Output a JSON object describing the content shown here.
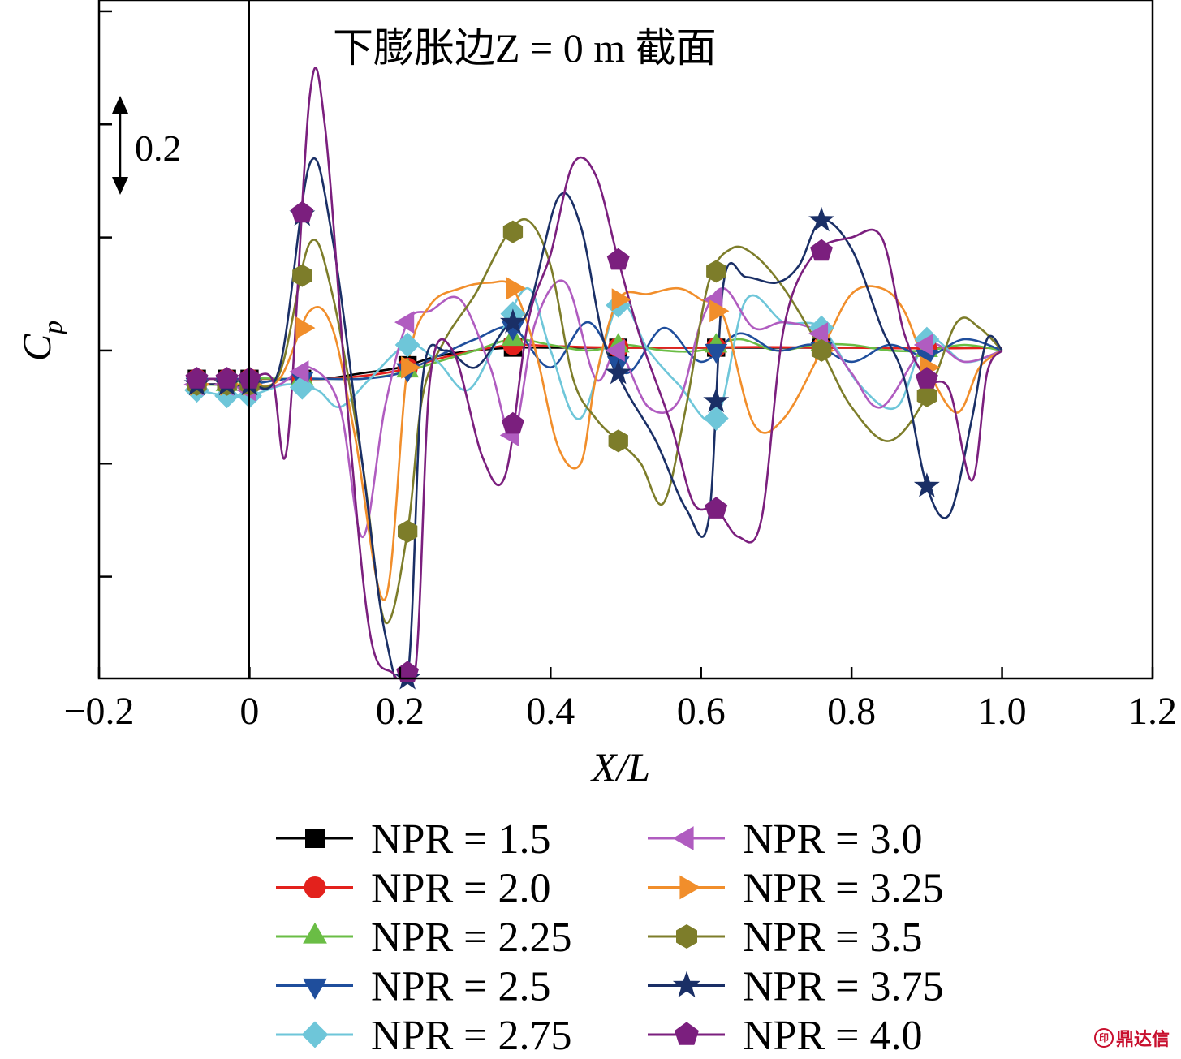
{
  "chart_data": {
    "type": "line",
    "title": "下膨胀边Z = 0 m 截面",
    "xlabel": "X/L",
    "ylabel": "C_p",
    "ylabel_main": "C",
    "ylabel_sub": "p",
    "xlim": [
      -0.2,
      1.2
    ],
    "xticks": [
      "−0.2",
      "0",
      "0.2",
      "0.4",
      "0.6",
      "0.8",
      "1.0",
      "1.2"
    ],
    "xtick_values": [
      -0.2,
      0,
      0.2,
      0.4,
      0.6,
      0.8,
      1.0,
      1.2
    ],
    "ylim": [
      -0.58,
      0.62
    ],
    "ytick_values": [
      -0.4,
      -0.2,
      0.0,
      0.2,
      0.4,
      0.6
    ],
    "y_tick_labels_shown": false,
    "scale_bar": {
      "label": "0.2",
      "value": 0.2,
      "from": 0.4,
      "to": 0.6
    },
    "legend_position": "bottom",
    "grid": false,
    "series": [
      {
        "name": "NPR = 1.5",
        "color": "#000000",
        "marker": "square",
        "x": [
          -0.07,
          -0.03,
          0.0,
          0.05,
          0.1,
          0.15,
          0.2,
          0.25,
          0.3,
          0.35,
          0.4,
          0.45,
          0.5,
          0.55,
          0.6,
          0.65,
          0.7,
          0.75,
          0.8,
          0.85,
          0.9,
          0.95,
          1.0
        ],
        "y": [
          -0.05,
          -0.05,
          -0.05,
          -0.05,
          -0.05,
          -0.04,
          -0.03,
          -0.01,
          0.0,
          0.005,
          0.005,
          0.005,
          0.005,
          0.005,
          0.005,
          0.005,
          0.005,
          0.005,
          0.005,
          0.005,
          0.005,
          0.005,
          0.005
        ],
        "marker_x": [
          -0.07,
          -0.03,
          0.0,
          0.07,
          0.21,
          0.35,
          0.49,
          0.62,
          0.76,
          0.9
        ]
      },
      {
        "name": "NPR = 2.0",
        "color": "#e3211c",
        "marker": "circle",
        "x": [
          -0.07,
          -0.03,
          0.0,
          0.05,
          0.1,
          0.15,
          0.2,
          0.25,
          0.3,
          0.35,
          0.4,
          0.45,
          0.5,
          0.55,
          0.6,
          0.65,
          0.7,
          0.75,
          0.8,
          0.85,
          0.9,
          0.95,
          1.0
        ],
        "y": [
          -0.05,
          -0.05,
          -0.05,
          -0.05,
          -0.05,
          -0.045,
          -0.035,
          -0.015,
          0.0,
          0.01,
          0.008,
          0.006,
          0.005,
          0.005,
          0.005,
          0.006,
          0.006,
          0.005,
          0.005,
          0.004,
          0.004,
          0.004,
          0.005
        ],
        "marker_x": [
          -0.07,
          -0.03,
          0.0,
          0.07,
          0.21,
          0.35,
          0.49,
          0.62,
          0.76,
          0.9
        ]
      },
      {
        "name": "NPR = 2.25",
        "color": "#6abd45",
        "marker": "triangle-up",
        "x": [
          -0.07,
          -0.03,
          0.0,
          0.05,
          0.1,
          0.15,
          0.2,
          0.25,
          0.3,
          0.35,
          0.4,
          0.45,
          0.5,
          0.55,
          0.6,
          0.65,
          0.7,
          0.75,
          0.8,
          0.85,
          0.9,
          0.95,
          1.0
        ],
        "y": [
          -0.06,
          -0.06,
          -0.05,
          -0.05,
          -0.05,
          -0.05,
          -0.04,
          -0.02,
          0.0,
          0.02,
          0.01,
          0.0,
          0.01,
          0.0,
          0.0,
          0.02,
          0.0,
          0.01,
          0.01,
          0.0,
          0.0,
          0.01,
          0.0
        ],
        "marker_x": [
          -0.07,
          -0.03,
          0.0,
          0.07,
          0.21,
          0.35,
          0.49,
          0.62,
          0.76,
          0.9
        ]
      },
      {
        "name": "NPR = 2.5",
        "color": "#1f4e9c",
        "marker": "triangle-down",
        "x": [
          -0.07,
          -0.03,
          0.0,
          0.05,
          0.1,
          0.15,
          0.2,
          0.25,
          0.3,
          0.35,
          0.4,
          0.45,
          0.5,
          0.55,
          0.6,
          0.65,
          0.7,
          0.75,
          0.8,
          0.85,
          0.9,
          0.95,
          1.0
        ],
        "y": [
          -0.06,
          -0.06,
          -0.06,
          -0.05,
          -0.05,
          -0.05,
          -0.04,
          -0.01,
          0.02,
          0.04,
          -0.03,
          0.05,
          -0.04,
          0.04,
          -0.02,
          0.03,
          0.0,
          0.01,
          -0.02,
          0.01,
          -0.01,
          0.02,
          0.0
        ],
        "marker_x": [
          -0.07,
          -0.03,
          0.0,
          0.07,
          0.21,
          0.35,
          0.49,
          0.62,
          0.76,
          0.9
        ]
      },
      {
        "name": "NPR = 2.75",
        "color": "#6ec6d9",
        "marker": "diamond",
        "x": [
          -0.07,
          -0.03,
          0.0,
          0.05,
          0.09,
          0.12,
          0.16,
          0.21,
          0.25,
          0.29,
          0.33,
          0.37,
          0.4,
          0.44,
          0.49,
          0.53,
          0.57,
          0.62,
          0.66,
          0.71,
          0.76,
          0.81,
          0.86,
          0.9,
          0.95,
          1.0
        ],
        "y": [
          -0.07,
          -0.08,
          -0.08,
          -0.06,
          -0.07,
          -0.1,
          -0.05,
          0.01,
          -0.02,
          -0.07,
          0.02,
          0.11,
          0.0,
          -0.12,
          0.08,
          0.0,
          -0.06,
          -0.12,
          0.09,
          0.05,
          0.04,
          -0.06,
          -0.1,
          0.02,
          -0.02,
          0.0
        ],
        "marker_x": [
          -0.07,
          -0.03,
          0.0,
          0.07,
          0.21,
          0.35,
          0.49,
          0.62,
          0.76,
          0.9
        ]
      },
      {
        "name": "NPR = 3.0",
        "color": "#b05cc0",
        "marker": "triangle-left",
        "x": [
          -0.07,
          -0.03,
          0.0,
          0.04,
          0.08,
          0.12,
          0.15,
          0.18,
          0.21,
          0.24,
          0.28,
          0.32,
          0.35,
          0.38,
          0.42,
          0.46,
          0.49,
          0.53,
          0.57,
          0.6,
          0.63,
          0.67,
          0.71,
          0.76,
          0.8,
          0.84,
          0.9,
          0.95,
          1.0
        ],
        "y": [
          -0.06,
          -0.06,
          -0.07,
          -0.06,
          -0.03,
          -0.1,
          -0.33,
          -0.1,
          0.05,
          0.07,
          0.09,
          -0.03,
          -0.15,
          0.05,
          0.12,
          -0.05,
          0.0,
          -0.1,
          -0.09,
          0.05,
          0.11,
          0.04,
          0.05,
          0.03,
          -0.04,
          -0.1,
          0.01,
          -0.02,
          0.0
        ],
        "marker_x": [
          -0.07,
          -0.03,
          0.0,
          0.07,
          0.21,
          0.35,
          0.49,
          0.62,
          0.76,
          0.9
        ]
      },
      {
        "name": "NPR = 3.25",
        "color": "#f18e2b",
        "marker": "triangle-right",
        "x": [
          -0.07,
          -0.03,
          0.0,
          0.04,
          0.08,
          0.11,
          0.14,
          0.18,
          0.21,
          0.24,
          0.28,
          0.32,
          0.35,
          0.38,
          0.41,
          0.44,
          0.46,
          0.49,
          0.53,
          0.57,
          0.6,
          0.63,
          0.67,
          0.71,
          0.76,
          0.8,
          0.84,
          0.87,
          0.9,
          0.94,
          0.97,
          1.0
        ],
        "y": [
          -0.06,
          -0.06,
          -0.06,
          -0.05,
          0.07,
          0.04,
          -0.15,
          -0.44,
          -0.03,
          0.08,
          0.11,
          0.12,
          0.11,
          0.0,
          -0.17,
          -0.2,
          -0.05,
          0.09,
          0.1,
          0.11,
          0.09,
          0.06,
          -0.13,
          -0.12,
          0.0,
          0.1,
          0.11,
          0.07,
          -0.03,
          -0.11,
          -0.03,
          0.0
        ],
        "marker_x": [
          -0.07,
          -0.03,
          0.0,
          0.07,
          0.21,
          0.35,
          0.49,
          0.62,
          0.76,
          0.9
        ]
      },
      {
        "name": "NPR = 3.5",
        "color": "#7d7d2a",
        "marker": "hexagon",
        "x": [
          -0.07,
          -0.03,
          0.0,
          0.04,
          0.08,
          0.11,
          0.15,
          0.18,
          0.21,
          0.23,
          0.26,
          0.3,
          0.34,
          0.37,
          0.4,
          0.43,
          0.46,
          0.49,
          0.52,
          0.55,
          0.58,
          0.61,
          0.64,
          0.67,
          0.71,
          0.76,
          0.8,
          0.85,
          0.9,
          0.94,
          0.97,
          1.0
        ],
        "y": [
          -0.06,
          -0.06,
          -0.06,
          -0.04,
          0.19,
          0.1,
          -0.2,
          -0.48,
          -0.32,
          -0.08,
          0.02,
          0.1,
          0.2,
          0.23,
          0.15,
          -0.05,
          -0.12,
          -0.16,
          -0.2,
          -0.27,
          -0.1,
          0.12,
          0.18,
          0.17,
          0.11,
          0.0,
          -0.1,
          -0.16,
          -0.08,
          0.05,
          0.04,
          0.0
        ],
        "marker_x": [
          -0.07,
          -0.03,
          0.0,
          0.07,
          0.21,
          0.35,
          0.49,
          0.62,
          0.76,
          0.9
        ]
      },
      {
        "name": "NPR = 3.75",
        "color": "#1a2f66",
        "marker": "star",
        "x": [
          -0.07,
          -0.03,
          0.0,
          0.04,
          0.08,
          0.11,
          0.15,
          0.18,
          0.21,
          0.23,
          0.26,
          0.3,
          0.34,
          0.37,
          0.41,
          0.44,
          0.47,
          0.5,
          0.54,
          0.58,
          0.61,
          0.63,
          0.66,
          0.7,
          0.73,
          0.76,
          0.8,
          0.84,
          0.87,
          0.9,
          0.93,
          0.96,
          0.98,
          1.0
        ],
        "y": [
          -0.06,
          -0.06,
          -0.06,
          -0.03,
          0.33,
          0.2,
          -0.2,
          -0.5,
          -0.58,
          -0.05,
          0.0,
          -0.03,
          0.04,
          0.07,
          0.27,
          0.22,
          0.02,
          -0.07,
          -0.16,
          -0.28,
          -0.3,
          0.12,
          0.13,
          0.12,
          0.15,
          0.23,
          0.18,
          0.04,
          -0.05,
          -0.24,
          -0.29,
          -0.12,
          0.02,
          0.0
        ],
        "marker_x": [
          -0.07,
          -0.03,
          0.0,
          0.07,
          0.21,
          0.35,
          0.49,
          0.62,
          0.76,
          0.9
        ]
      },
      {
        "name": "NPR = 4.0",
        "color": "#7b1f7e",
        "marker": "pentagon",
        "x": [
          -0.07,
          -0.03,
          0.0,
          0.03,
          0.05,
          0.08,
          0.1,
          0.13,
          0.16,
          0.19,
          0.22,
          0.24,
          0.27,
          0.31,
          0.34,
          0.37,
          0.4,
          0.43,
          0.46,
          0.49,
          0.52,
          0.56,
          0.59,
          0.62,
          0.65,
          0.68,
          0.71,
          0.75,
          0.8,
          0.84,
          0.87,
          0.9,
          0.93,
          0.96,
          0.98,
          1.0
        ],
        "y": [
          -0.05,
          -0.05,
          -0.05,
          -0.05,
          -0.17,
          0.45,
          0.4,
          -0.1,
          -0.5,
          -0.57,
          -0.57,
          -0.05,
          0.0,
          -0.19,
          -0.22,
          0.05,
          0.17,
          0.33,
          0.31,
          0.16,
          0.02,
          -0.13,
          -0.27,
          -0.28,
          -0.33,
          -0.3,
          0.04,
          0.17,
          0.2,
          0.2,
          0.03,
          -0.05,
          -0.07,
          -0.23,
          -0.04,
          0.0
        ],
        "marker_x": [
          -0.07,
          -0.03,
          0.0,
          0.07,
          0.21,
          0.35,
          0.49,
          0.62,
          0.76,
          0.9
        ]
      }
    ]
  },
  "watermark": {
    "text": "鼎达信",
    "icon": "stamp-icon"
  }
}
